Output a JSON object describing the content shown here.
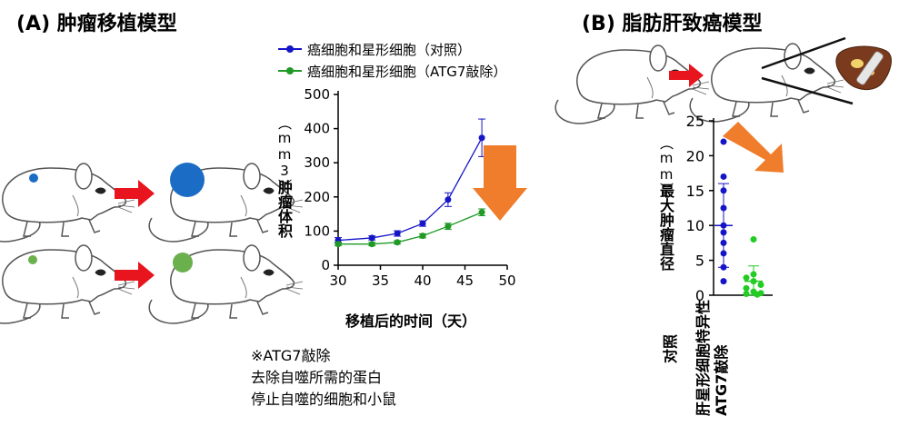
{
  "panel_a": {
    "heading": "(A) 肿瘤移植模型",
    "note_lines": [
      "※ATG7敲除",
      "去除自噬所需的蛋白",
      "停止自噬的细胞和小鼠"
    ]
  },
  "panel_b": {
    "heading": "(B) 脂肪肝致癌模型"
  },
  "colors": {
    "control": "#1515c8",
    "knockout": "#1f9a25",
    "arrow_red": "#e8141e",
    "arrow_orange": "#ef7d2b",
    "tumor_blue": "#1a6cc4",
    "tumor_green": "#6ab04c",
    "kd_dot": "#22cc22"
  },
  "chart_data": [
    {
      "type": "line",
      "title": "",
      "xlabel": "移植后的时间（天）",
      "ylabel": "肿瘤体积",
      "ylabel_unit": "（mm3）",
      "xlim": [
        30,
        50
      ],
      "ylim": [
        0,
        500
      ],
      "xticks": [
        30,
        35,
        40,
        45,
        50
      ],
      "yticks": [
        0,
        100,
        200,
        300,
        400,
        500
      ],
      "grid": false,
      "legend_position": "top",
      "series": [
        {
          "name": "癌细胞和星形细胞（对照）",
          "color": "#1515c8",
          "x": [
            30,
            34,
            37,
            40,
            43,
            47
          ],
          "y": [
            73,
            80,
            93,
            122,
            192,
            373
          ],
          "err": [
            8,
            6,
            8,
            8,
            20,
            55
          ]
        },
        {
          "name": "癌细胞和星形细胞（ATG7敲除）",
          "color": "#1f9a25",
          "x": [
            30,
            34,
            37,
            40,
            43,
            47
          ],
          "y": [
            62,
            62,
            67,
            86,
            114,
            155
          ],
          "err": [
            5,
            5,
            5,
            6,
            9,
            10
          ]
        }
      ]
    },
    {
      "type": "scatter",
      "title": "",
      "ylabel": "最大肿瘤直径",
      "ylabel_unit": "（mm）",
      "ylim": [
        0,
        25
      ],
      "yticks": [
        0,
        5,
        10,
        15,
        20,
        25
      ],
      "grid": false,
      "category_labels": [
        "对照",
        "肝星形细胞特异性ATG7敲除"
      ],
      "groups": [
        {
          "name": "对照",
          "color": "#1515c8",
          "values": [
            22,
            17,
            15,
            12.5,
            10,
            9,
            7.5,
            6,
            4,
            2
          ],
          "mean": 10,
          "sd": 6
        },
        {
          "name": "肝星形细胞特异性ATG7敲除",
          "color": "#22cc22",
          "values": [
            8,
            3,
            2.5,
            2,
            1.5,
            1,
            0.5,
            0.3,
            0.2,
            0.1
          ],
          "mean": 2,
          "sd": 2.2
        }
      ]
    }
  ]
}
